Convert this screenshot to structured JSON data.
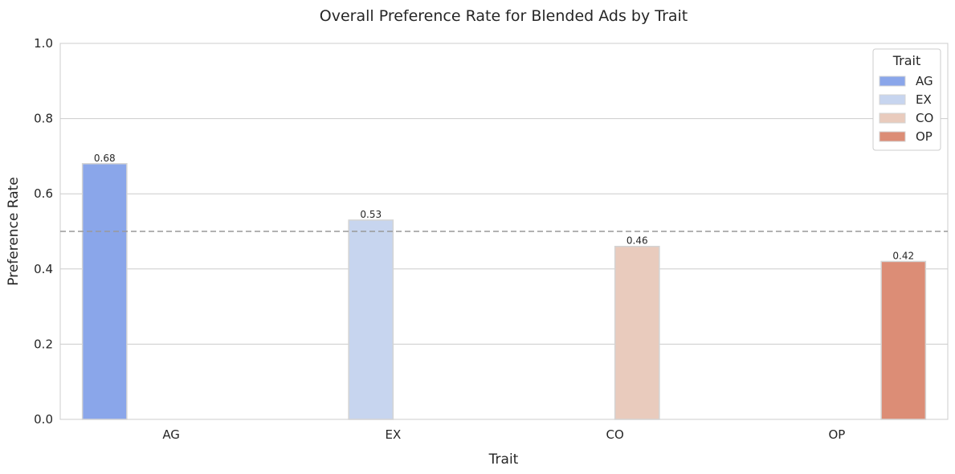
{
  "chart_data": {
    "type": "bar",
    "title": "Overall Preference Rate for Blended Ads by Trait",
    "xlabel": "Trait",
    "ylabel": "Preference Rate",
    "categories": [
      "AG",
      "EX",
      "CO",
      "OP"
    ],
    "ylim": [
      0,
      1.0
    ],
    "yticks": [
      "0.0",
      "0.2",
      "0.4",
      "0.6",
      "0.8",
      "1.0"
    ],
    "grid": true,
    "reference_line": 0.5,
    "legend": {
      "title": "Trait",
      "placement": "top-right"
    },
    "series": [
      {
        "name": "AG",
        "color": "#8aa6ea",
        "values": [
          0.68,
          null,
          null,
          null
        ],
        "labels": [
          "0.68",
          "",
          "",
          ""
        ]
      },
      {
        "name": "EX",
        "color": "#c7d5ef",
        "values": [
          null,
          0.53,
          null,
          null
        ],
        "labels": [
          "",
          "0.53",
          "",
          ""
        ]
      },
      {
        "name": "CO",
        "color": "#e9cbbd",
        "values": [
          null,
          null,
          0.46,
          null
        ],
        "labels": [
          "",
          "",
          "0.46",
          ""
        ]
      },
      {
        "name": "OP",
        "color": "#dc8d76",
        "values": [
          null,
          null,
          null,
          0.42
        ],
        "labels": [
          "",
          "",
          "",
          "0.42"
        ]
      }
    ]
  }
}
